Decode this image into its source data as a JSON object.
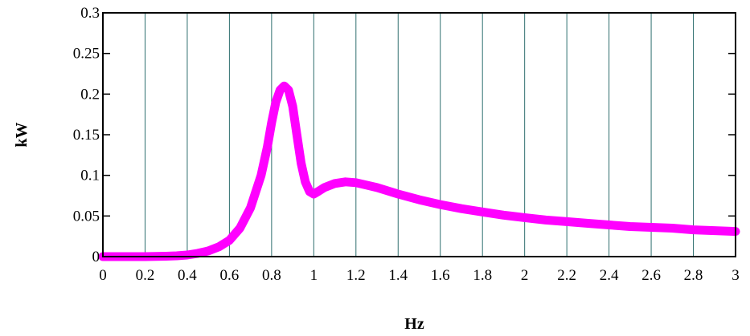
{
  "chart_data": {
    "type": "line",
    "title": "",
    "xlabel": "Hz",
    "ylabel": "kW",
    "xlim": [
      0,
      3
    ],
    "ylim": [
      0,
      0.3
    ],
    "x_ticks": [
      "0",
      "0.2",
      "0.4",
      "0.6",
      "0.8",
      "1",
      "1.2",
      "1.4",
      "1.6",
      "1.8",
      "2",
      "2.2",
      "2.4",
      "2.6",
      "2.8",
      "3"
    ],
    "y_ticks": [
      "0",
      "0.05",
      "0.1",
      "0.15",
      "0.2",
      "0.25",
      "0.3"
    ],
    "grid": "vertical",
    "series": [
      {
        "color": "#ff00ff",
        "x": [
          0,
          0.1,
          0.2,
          0.3,
          0.35,
          0.4,
          0.45,
          0.5,
          0.55,
          0.6,
          0.65,
          0.7,
          0.75,
          0.78,
          0.8,
          0.82,
          0.84,
          0.86,
          0.88,
          0.9,
          0.92,
          0.94,
          0.96,
          0.98,
          1.0,
          1.02,
          1.05,
          1.1,
          1.15,
          1.2,
          1.25,
          1.3,
          1.4,
          1.5,
          1.6,
          1.7,
          1.8,
          1.9,
          2.0,
          2.1,
          2.2,
          2.3,
          2.4,
          2.5,
          2.6,
          2.7,
          2.8,
          2.9,
          3.0
        ],
        "values": [
          0,
          0,
          0,
          0.0005,
          0.001,
          0.002,
          0.004,
          0.007,
          0.012,
          0.02,
          0.035,
          0.06,
          0.1,
          0.135,
          0.165,
          0.19,
          0.205,
          0.21,
          0.205,
          0.185,
          0.15,
          0.115,
          0.092,
          0.08,
          0.077,
          0.08,
          0.085,
          0.09,
          0.092,
          0.091,
          0.088,
          0.085,
          0.077,
          0.07,
          0.064,
          0.059,
          0.055,
          0.051,
          0.048,
          0.045,
          0.043,
          0.041,
          0.039,
          0.037,
          0.036,
          0.035,
          0.033,
          0.032,
          0.031
        ]
      }
    ]
  }
}
